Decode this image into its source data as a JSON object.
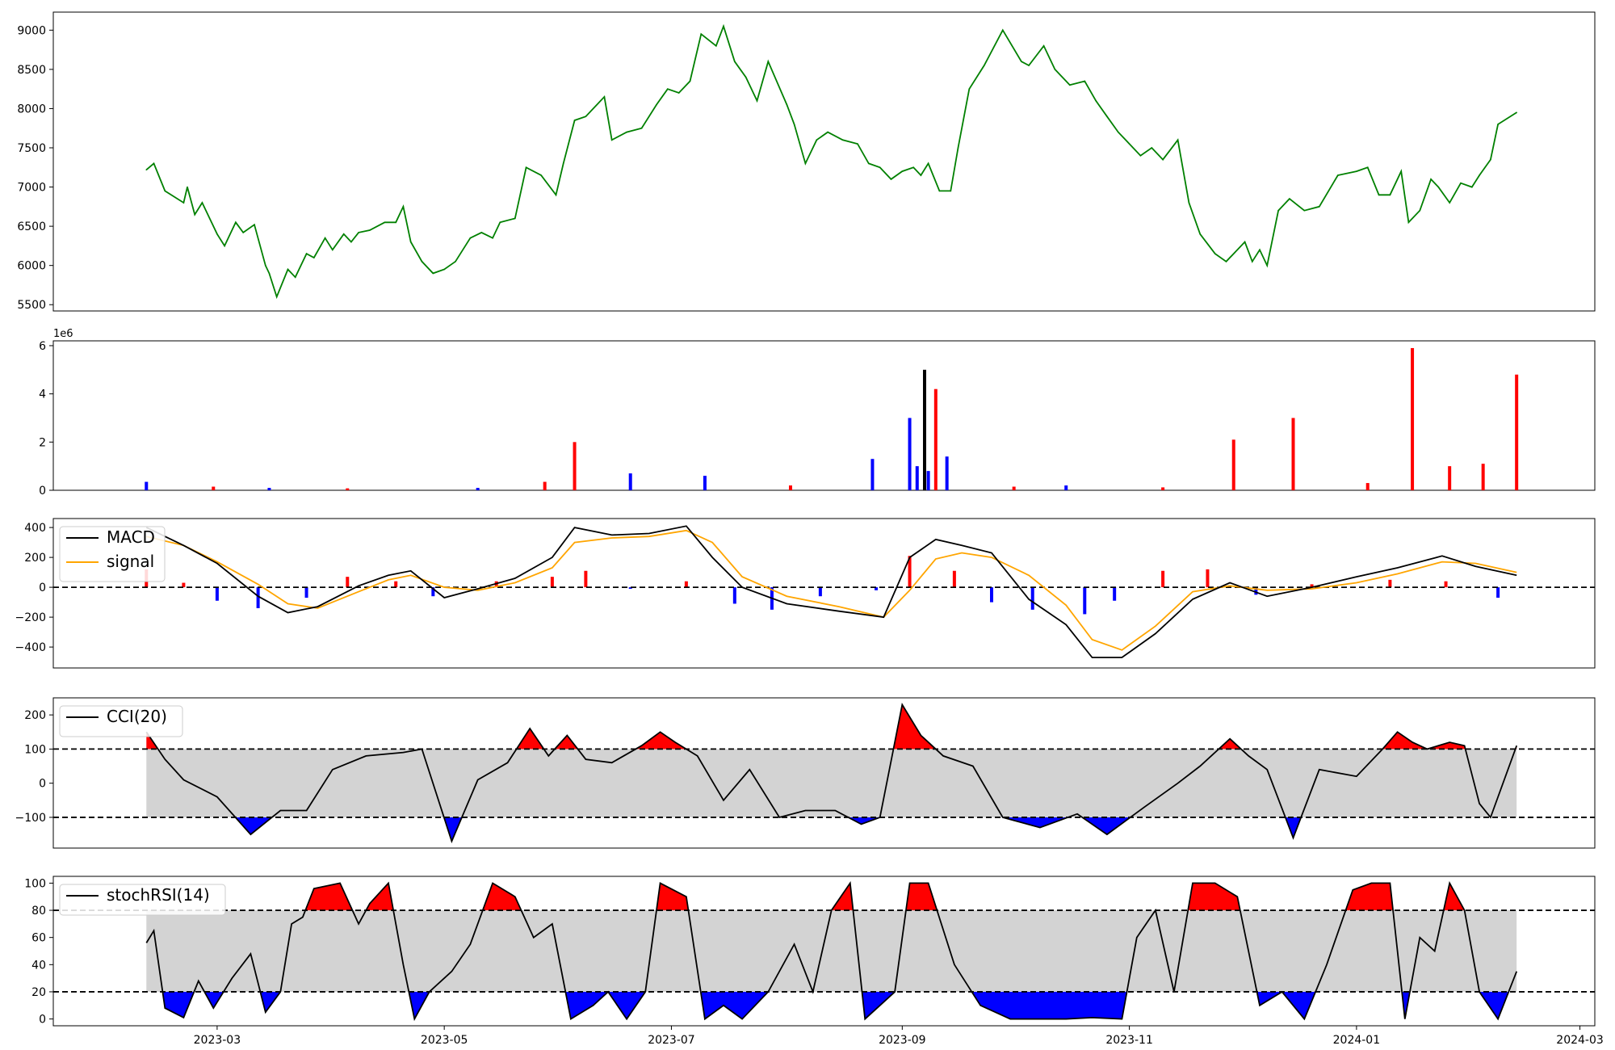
{
  "figure": {
    "x_date_min": "2023-01-16",
    "x_date_max": "2024-03-05"
  },
  "x_axis": {
    "ticks": [
      {
        "date": "2023-03-01",
        "label": "2023-03"
      },
      {
        "date": "2023-05-01",
        "label": "2023-05"
      },
      {
        "date": "2023-07-01",
        "label": "2023-07"
      },
      {
        "date": "2023-09-01",
        "label": "2023-09"
      },
      {
        "date": "2023-11-01",
        "label": "2023-11"
      },
      {
        "date": "2024-01-01",
        "label": "2024-01"
      },
      {
        "date": "2024-03-01",
        "label": "2024-03"
      }
    ]
  },
  "colors": {
    "price": "#008000",
    "up": "#ff0000",
    "down": "#0000ff",
    "neutral": "#000000",
    "signal": "#ffa500",
    "band": "#d3d3d3",
    "line": "#000000"
  },
  "chart_data": [
    {
      "id": "price",
      "type": "line",
      "title": "",
      "xlabel": "",
      "ylabel": "",
      "ylim": [
        5420,
        9230
      ],
      "yticks": [
        5500,
        6000,
        6500,
        7000,
        7500,
        8000,
        8500,
        9000
      ],
      "x": [
        "2023-02-10",
        "2023-02-12",
        "2023-02-15",
        "2023-02-20",
        "2023-02-21",
        "2023-02-23",
        "2023-02-25",
        "2023-03-01",
        "2023-03-03",
        "2023-03-06",
        "2023-03-08",
        "2023-03-11",
        "2023-03-14",
        "2023-03-15",
        "2023-03-17",
        "2023-03-20",
        "2023-03-22",
        "2023-03-25",
        "2023-03-27",
        "2023-03-30",
        "2023-04-01",
        "2023-04-04",
        "2023-04-06",
        "2023-04-08",
        "2023-04-11",
        "2023-04-15",
        "2023-04-18",
        "2023-04-20",
        "2023-04-22",
        "2023-04-25",
        "2023-04-28",
        "2023-05-01",
        "2023-05-04",
        "2023-05-08",
        "2023-05-11",
        "2023-05-14",
        "2023-05-16",
        "2023-05-20",
        "2023-05-23",
        "2023-05-27",
        "2023-05-31",
        "2023-06-02",
        "2023-06-05",
        "2023-06-08",
        "2023-06-13",
        "2023-06-15",
        "2023-06-19",
        "2023-06-23",
        "2023-06-27",
        "2023-06-30",
        "2023-07-03",
        "2023-07-06",
        "2023-07-09",
        "2023-07-13",
        "2023-07-15",
        "2023-07-18",
        "2023-07-21",
        "2023-07-24",
        "2023-07-27",
        "2023-08-01",
        "2023-08-03",
        "2023-08-06",
        "2023-08-09",
        "2023-08-12",
        "2023-08-16",
        "2023-08-20",
        "2023-08-23",
        "2023-08-26",
        "2023-08-29",
        "2023-09-01",
        "2023-09-04",
        "2023-09-06",
        "2023-09-08",
        "2023-09-11",
        "2023-09-14",
        "2023-09-16",
        "2023-09-19",
        "2023-09-23",
        "2023-09-28",
        "2023-10-03",
        "2023-10-05",
        "2023-10-09",
        "2023-10-12",
        "2023-10-16",
        "2023-10-20",
        "2023-10-23",
        "2023-10-26",
        "2023-10-29",
        "2023-11-01",
        "2023-11-04",
        "2023-11-07",
        "2023-11-10",
        "2023-11-14",
        "2023-11-17",
        "2023-11-20",
        "2023-11-24",
        "2023-11-27",
        "2023-12-02",
        "2023-12-04",
        "2023-12-06",
        "2023-12-08",
        "2023-12-11",
        "2023-12-14",
        "2023-12-18",
        "2023-12-22",
        "2023-12-27",
        "2024-01-01",
        "2024-01-04",
        "2024-01-07",
        "2024-01-10",
        "2024-01-13",
        "2024-01-15",
        "2024-01-18",
        "2024-01-21",
        "2024-01-23",
        "2024-01-26",
        "2024-01-29",
        "2024-02-01",
        "2024-02-03",
        "2024-02-06",
        "2024-02-08",
        "2024-02-13"
      ],
      "series": [
        {
          "values": [
            7220,
            7300,
            6950,
            6800,
            7000,
            6650,
            6800,
            6400,
            6250,
            6550,
            6420,
            6520,
            6000,
            5900,
            5600,
            5950,
            5850,
            6150,
            6100,
            6350,
            6200,
            6400,
            6300,
            6420,
            6450,
            6550,
            6550,
            6750,
            6300,
            6050,
            5900,
            5950,
            6050,
            6350,
            6420,
            6350,
            6550,
            6600,
            7250,
            7150,
            6900,
            7300,
            7850,
            7900,
            8150,
            7600,
            7700,
            7750,
            8050,
            8250,
            8200,
            8350,
            8950,
            8800,
            9050,
            8600,
            8400,
            8100,
            8600,
            8050,
            7800,
            7300,
            7600,
            7700,
            7600,
            7550,
            7300,
            7250,
            7100,
            7200,
            7250,
            7150,
            7300,
            6950,
            6950,
            7500,
            8250,
            8550,
            9000,
            8600,
            8550,
            8800,
            8500,
            8300,
            8350,
            8100,
            7900,
            7700,
            7550,
            7400,
            7500,
            7350,
            7600,
            6800,
            6400,
            6150,
            6050,
            6300,
            6050,
            6200,
            6000,
            6700,
            6850,
            6700,
            6750,
            7150,
            7200,
            7250,
            6900,
            6900,
            7200,
            6550,
            6700,
            7100,
            7000,
            6800,
            7050,
            7000,
            7150,
            7350,
            7800,
            7950
          ]
        }
      ]
    },
    {
      "id": "volume",
      "type": "bar",
      "title": "",
      "xlabel": "",
      "ylabel": "",
      "offset_label": "1e6",
      "ylim": [
        0,
        6.2
      ],
      "yticks": [
        0,
        2,
        4,
        6
      ],
      "x": [
        "2023-02-10",
        "2023-02-28",
        "2023-03-15",
        "2023-04-05",
        "2023-05-10",
        "2023-05-28",
        "2023-06-05",
        "2023-06-20",
        "2023-07-10",
        "2023-08-02",
        "2023-08-24",
        "2023-09-03",
        "2023-09-05",
        "2023-09-07",
        "2023-09-08",
        "2023-09-10",
        "2023-09-13",
        "2023-10-01",
        "2023-10-15",
        "2023-11-10",
        "2023-11-29",
        "2023-12-15",
        "2024-01-04",
        "2024-01-16",
        "2024-01-26",
        "2024-02-04",
        "2024-02-13"
      ],
      "values": [
        0.35,
        0.15,
        0.1,
        0.08,
        0.1,
        0.35,
        2.0,
        0.7,
        0.6,
        0.2,
        1.3,
        3.0,
        1.0,
        5.0,
        0.8,
        4.2,
        1.4,
        0.15,
        0.2,
        0.12,
        2.1,
        3.0,
        0.3,
        5.9,
        1.0,
        1.1,
        4.8
      ],
      "bar_colors": [
        "down",
        "up",
        "down",
        "up",
        "down",
        "up",
        "up",
        "down",
        "down",
        "up",
        "down",
        "down",
        "down",
        "neutral",
        "down",
        "up",
        "down",
        "up",
        "down",
        "up",
        "up",
        "up",
        "up",
        "up",
        "up",
        "up",
        "up"
      ]
    },
    {
      "id": "macd",
      "type": "line",
      "title": "",
      "xlabel": "",
      "ylabel": "",
      "ylim": [
        -540,
        460
      ],
      "yticks": [
        -400,
        -200,
        0,
        200,
        400
      ],
      "legend": {
        "location": "upper left",
        "entries": [
          {
            "label": "MACD",
            "color": "line"
          },
          {
            "label": "signal",
            "color": "signal"
          }
        ]
      },
      "x": [
        "2023-02-10",
        "2023-02-20",
        "2023-03-01",
        "2023-03-12",
        "2023-03-20",
        "2023-03-28",
        "2023-04-08",
        "2023-04-16",
        "2023-04-22",
        "2023-05-01",
        "2023-05-10",
        "2023-05-20",
        "2023-05-30",
        "2023-06-05",
        "2023-06-15",
        "2023-06-25",
        "2023-07-05",
        "2023-07-12",
        "2023-07-20",
        "2023-08-01",
        "2023-08-15",
        "2023-08-27",
        "2023-09-03",
        "2023-09-10",
        "2023-09-17",
        "2023-09-25",
        "2023-10-05",
        "2023-10-15",
        "2023-10-22",
        "2023-10-30",
        "2023-11-08",
        "2023-11-18",
        "2023-11-28",
        "2023-12-08",
        "2023-12-20",
        "2024-01-01",
        "2024-01-12",
        "2024-01-24",
        "2024-02-02",
        "2024-02-13"
      ],
      "series": [
        {
          "name": "MACD",
          "values": [
            400,
            280,
            160,
            -60,
            -170,
            -130,
            10,
            80,
            110,
            -70,
            -10,
            60,
            200,
            400,
            350,
            360,
            410,
            200,
            0,
            -110,
            -160,
            -200,
            200,
            320,
            280,
            230,
            -80,
            -250,
            -470,
            -470,
            -310,
            -80,
            30,
            -60,
            0,
            70,
            130,
            210,
            140,
            80
          ]
        },
        {
          "name": "signal",
          "values": [
            340,
            280,
            170,
            20,
            -110,
            -140,
            -30,
            50,
            80,
            0,
            -20,
            30,
            130,
            300,
            330,
            340,
            380,
            300,
            70,
            -60,
            -130,
            -200,
            -20,
            190,
            230,
            200,
            80,
            -120,
            -350,
            -420,
            -260,
            -30,
            10,
            -20,
            -10,
            30,
            90,
            170,
            160,
            100
          ]
        }
      ],
      "histogram": {
        "x": [
          "2023-02-10",
          "2023-02-20",
          "2023-03-01",
          "2023-03-12",
          "2023-03-25",
          "2023-04-05",
          "2023-04-18",
          "2023-04-28",
          "2023-05-15",
          "2023-05-30",
          "2023-06-08",
          "2023-06-20",
          "2023-07-05",
          "2023-07-18",
          "2023-07-28",
          "2023-08-10",
          "2023-08-25",
          "2023-09-03",
          "2023-09-15",
          "2023-09-25",
          "2023-10-06",
          "2023-10-20",
          "2023-10-28",
          "2023-11-10",
          "2023-11-22",
          "2023-12-05",
          "2023-12-20",
          "2024-01-10",
          "2024-01-25",
          "2024-02-08"
        ],
        "values": [
          120,
          30,
          -90,
          -140,
          -70,
          70,
          40,
          -60,
          40,
          70,
          110,
          -10,
          40,
          -110,
          -150,
          -60,
          -20,
          210,
          110,
          -100,
          -150,
          -180,
          -90,
          110,
          120,
          -50,
          20,
          50,
          40,
          -70
        ]
      }
    },
    {
      "id": "cci",
      "type": "area",
      "title": "",
      "xlabel": "",
      "ylabel": "",
      "ylim": [
        -190,
        250
      ],
      "yticks": [
        -100,
        0,
        100,
        200
      ],
      "thresholds": [
        100,
        -100
      ],
      "legend": {
        "location": "upper left",
        "entries": [
          {
            "label": "CCI(20)",
            "color": "line"
          }
        ]
      },
      "x": [
        "2023-02-10",
        "2023-02-15",
        "2023-02-20",
        "2023-03-01",
        "2023-03-10",
        "2023-03-18",
        "2023-03-25",
        "2023-04-01",
        "2023-04-10",
        "2023-04-20",
        "2023-04-25",
        "2023-05-03",
        "2023-05-10",
        "2023-05-18",
        "2023-05-24",
        "2023-05-29",
        "2023-06-03",
        "2023-06-08",
        "2023-06-15",
        "2023-06-23",
        "2023-06-28",
        "2023-07-02",
        "2023-07-08",
        "2023-07-15",
        "2023-07-22",
        "2023-07-30",
        "2023-08-06",
        "2023-08-14",
        "2023-08-21",
        "2023-08-26",
        "2023-09-01",
        "2023-09-06",
        "2023-09-12",
        "2023-09-20",
        "2023-09-28",
        "2023-10-08",
        "2023-10-18",
        "2023-10-26",
        "2023-11-05",
        "2023-11-14",
        "2023-11-20",
        "2023-11-28",
        "2023-12-03",
        "2023-12-08",
        "2023-12-15",
        "2023-12-22",
        "2024-01-01",
        "2024-01-08",
        "2024-01-12",
        "2024-01-16",
        "2024-01-20",
        "2024-01-26",
        "2024-01-30",
        "2024-02-03",
        "2024-02-06",
        "2024-02-13"
      ],
      "series": [
        {
          "name": "CCI(20)",
          "values": [
            150,
            70,
            10,
            -40,
            -150,
            -80,
            -80,
            40,
            80,
            90,
            100,
            -170,
            10,
            60,
            160,
            80,
            140,
            70,
            60,
            110,
            150,
            120,
            80,
            -50,
            40,
            -100,
            -80,
            -80,
            -120,
            -100,
            230,
            140,
            80,
            50,
            -100,
            -130,
            -90,
            -150,
            -70,
            0,
            50,
            130,
            80,
            40,
            -160,
            40,
            20,
            100,
            150,
            120,
            100,
            120,
            110,
            -60,
            -100,
            110
          ]
        }
      ]
    },
    {
      "id": "stochrsi",
      "type": "area",
      "title": "",
      "xlabel": "",
      "ylabel": "",
      "ylim": [
        -5,
        105
      ],
      "yticks": [
        0,
        20,
        40,
        60,
        80,
        100
      ],
      "thresholds": [
        80,
        20
      ],
      "legend": {
        "location": "upper left",
        "entries": [
          {
            "label": "stochRSI(14)",
            "color": "line"
          }
        ]
      },
      "x": [
        "2023-02-10",
        "2023-02-12",
        "2023-02-15",
        "2023-02-20",
        "2023-02-24",
        "2023-02-28",
        "2023-03-05",
        "2023-03-10",
        "2023-03-14",
        "2023-03-18",
        "2023-03-21",
        "2023-03-24",
        "2023-03-27",
        "2023-04-03",
        "2023-04-08",
        "2023-04-11",
        "2023-04-16",
        "2023-04-20",
        "2023-04-23",
        "2023-04-27",
        "2023-05-03",
        "2023-05-08",
        "2023-05-14",
        "2023-05-20",
        "2023-05-25",
        "2023-05-30",
        "2023-06-04",
        "2023-06-10",
        "2023-06-14",
        "2023-06-19",
        "2023-06-24",
        "2023-06-28",
        "2023-07-05",
        "2023-07-10",
        "2023-07-15",
        "2023-07-20",
        "2023-07-27",
        "2023-08-03",
        "2023-08-08",
        "2023-08-13",
        "2023-08-18",
        "2023-08-22",
        "2023-08-26",
        "2023-08-30",
        "2023-09-03",
        "2023-09-08",
        "2023-09-15",
        "2023-09-22",
        "2023-09-30",
        "2023-10-08",
        "2023-10-15",
        "2023-10-22",
        "2023-10-30",
        "2023-11-03",
        "2023-11-08",
        "2023-11-13",
        "2023-11-18",
        "2023-11-24",
        "2023-11-30",
        "2023-12-06",
        "2023-12-12",
        "2023-12-18",
        "2023-12-24",
        "2023-12-31",
        "2024-01-05",
        "2024-01-10",
        "2024-01-14",
        "2024-01-18",
        "2024-01-22",
        "2024-01-26",
        "2024-01-30",
        "2024-02-03",
        "2024-02-08",
        "2024-02-13"
      ],
      "series": [
        {
          "name": "stochRSI(14)",
          "values": [
            56,
            65,
            8,
            1,
            28,
            8,
            30,
            48,
            5,
            20,
            70,
            75,
            96,
            100,
            70,
            85,
            100,
            40,
            0,
            20,
            35,
            55,
            100,
            90,
            60,
            70,
            0,
            10,
            20,
            0,
            20,
            100,
            90,
            0,
            10,
            0,
            20,
            55,
            20,
            80,
            100,
            0,
            10,
            20,
            100,
            100,
            40,
            10,
            0,
            0,
            0,
            1,
            0,
            60,
            80,
            20,
            100,
            100,
            90,
            10,
            20,
            0,
            40,
            95,
            100,
            100,
            0,
            60,
            50,
            100,
            80,
            20,
            0,
            35
          ]
        }
      ]
    }
  ]
}
